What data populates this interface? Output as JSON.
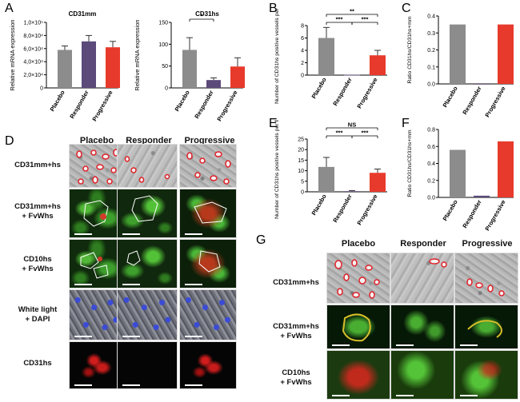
{
  "panels": {
    "A": "A",
    "B": "B",
    "C": "C",
    "D": "D",
    "E": "E",
    "F": "F",
    "G": "G"
  },
  "colors": {
    "placebo": "#8c8c8c",
    "responder": "#5b4a7a",
    "progressive": "#e83a2c",
    "outline_red": "#e0222a"
  },
  "chart_data": [
    {
      "id": "A1",
      "type": "bar",
      "title": "CD31mm",
      "ylabel": "Relative mRNA expression",
      "categories": [
        "Placebo",
        "Responder",
        "Progressive"
      ],
      "values": [
        58000,
        71000,
        62000
      ],
      "errors": [
        6000,
        9000,
        9000
      ],
      "ylim": [
        0,
        100000
      ],
      "yticks": [
        "0",
        "2,0×10⁴",
        "4,0×10⁴",
        "6,0×10⁴",
        "8,0×10⁴",
        "1,0×10⁵"
      ],
      "ytick_values": [
        0,
        20000,
        40000,
        60000,
        80000,
        100000
      ]
    },
    {
      "id": "A2",
      "type": "bar",
      "title": "CD31hs",
      "ylabel": "Relative mRNA expression",
      "categories": [
        "Placebo",
        "Responder",
        "Progressive"
      ],
      "values": [
        87,
        18,
        49
      ],
      "errors": [
        28,
        5,
        20
      ],
      "ylim": [
        0,
        150
      ],
      "yticks": [
        "0",
        "50",
        "100",
        "150"
      ],
      "ytick_values": [
        0,
        50,
        100,
        150
      ],
      "significance": [
        {
          "from": 0,
          "to": 1,
          "label": "*"
        }
      ]
    },
    {
      "id": "B",
      "type": "bar",
      "ylabel": "Number of CD31hs positive vessels per field",
      "categories": [
        "Placebo",
        "Responder",
        "Progressive"
      ],
      "values": [
        6.0,
        0.05,
        3.2
      ],
      "errors": [
        1.7,
        0.0,
        0.8
      ],
      "ylim": [
        0,
        8
      ],
      "yticks": [
        "0",
        "2",
        "4",
        "6",
        "8"
      ],
      "ytick_values": [
        0,
        2,
        4,
        6,
        8
      ],
      "significance": [
        {
          "from": 0,
          "to": 1,
          "label": "***"
        },
        {
          "from": 1,
          "to": 2,
          "label": "***"
        },
        {
          "from": 0,
          "to": 2,
          "label": "**"
        }
      ]
    },
    {
      "id": "C",
      "type": "bar",
      "ylabel": "Ratio CD31hs/CD31hs+mm",
      "categories": [
        "Placebo",
        "Responder",
        "Progressive"
      ],
      "values": [
        0.35,
        0.0,
        0.35
      ],
      "errors": [
        0,
        0,
        0
      ],
      "ylim": [
        0,
        0.4
      ],
      "yticks": [
        "0.0",
        "0.1",
        "0.2",
        "0.3",
        "0.4"
      ],
      "ytick_values": [
        0,
        0.1,
        0.2,
        0.3,
        0.4
      ]
    },
    {
      "id": "E",
      "type": "bar",
      "ylabel": "Number of CD31hs positive vessels per field",
      "categories": [
        "Placebo",
        "Responder",
        "Progressive"
      ],
      "values": [
        11.8,
        0.3,
        9.0
      ],
      "errors": [
        4.5,
        0.3,
        1.8
      ],
      "ylim": [
        0,
        25
      ],
      "yticks": [
        "0",
        "5",
        "10",
        "15",
        "20",
        "25"
      ],
      "ytick_values": [
        0,
        5,
        10,
        15,
        20,
        25
      ],
      "significance": [
        {
          "from": 0,
          "to": 1,
          "label": "***"
        },
        {
          "from": 1,
          "to": 2,
          "label": "***"
        },
        {
          "from": 0,
          "to": 2,
          "label": "NS"
        }
      ]
    },
    {
      "id": "F",
      "type": "bar",
      "ylabel": "Ratio CD31hs/CD31hs+mm",
      "categories": [
        "Placebo",
        "Responder",
        "Progressive"
      ],
      "values": [
        0.56,
        0.02,
        0.66
      ],
      "errors": [
        0,
        0,
        0
      ],
      "ylim": [
        0,
        0.8
      ],
      "yticks": [
        "0.0",
        "0.2",
        "0.4",
        "0.6",
        "0.8"
      ],
      "ytick_values": [
        0,
        0.2,
        0.4,
        0.6,
        0.8
      ]
    }
  ],
  "D": {
    "columns": [
      "Placebo",
      "Responder",
      "Progressive"
    ],
    "rows": [
      "CD31mm+hs",
      "CD31mm+hs\n+ FvWhs",
      "CD10hs\n+ FvWhs",
      "White light\n+ DAPI",
      "CD31hs"
    ]
  },
  "G": {
    "columns": [
      "Placebo",
      "Responder",
      "Progressive"
    ],
    "rows": [
      "CD31mm+hs",
      "CD31mm+hs\n+ FvWhs",
      "CD10hs\n+ FvWhs"
    ]
  }
}
